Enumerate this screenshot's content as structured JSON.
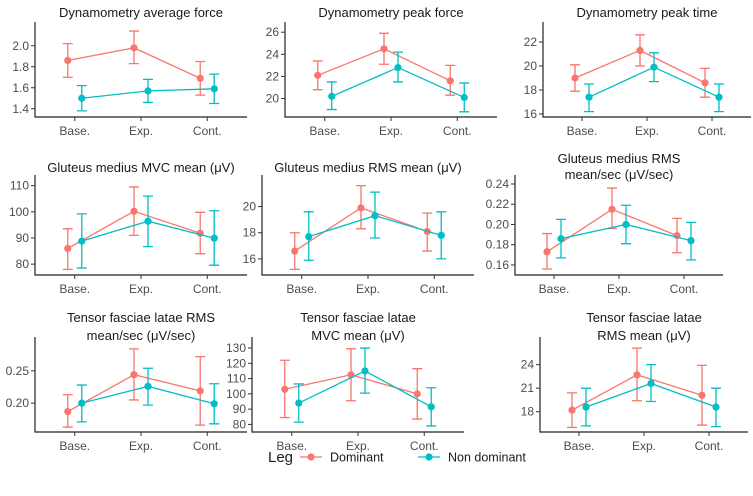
{
  "chart_data": [
    {
      "type": "line",
      "title": [
        "Dynamometry average force"
      ],
      "categories": [
        "Base.",
        "Exp.",
        "Cont."
      ],
      "yticks": [
        "1.4",
        "1.6",
        "1.8",
        "2.0"
      ],
      "ylim": [
        1.35,
        2.15
      ],
      "series": [
        {
          "name": "Dominant",
          "mean": [
            1.86,
            1.98,
            1.69
          ],
          "lower": [
            1.7,
            1.83,
            1.53
          ],
          "upper": [
            2.02,
            2.14,
            1.85
          ]
        },
        {
          "name": "Non dominant",
          "mean": [
            1.5,
            1.57,
            1.59
          ],
          "lower": [
            1.38,
            1.46,
            1.45
          ],
          "upper": [
            1.62,
            1.68,
            1.73
          ]
        }
      ]
    },
    {
      "type": "line",
      "title": [
        "Dynamometry peak force"
      ],
      "categories": [
        "Base.",
        "Exp.",
        "Cont."
      ],
      "yticks": [
        "20",
        "22",
        "24",
        "26"
      ],
      "ylim": [
        18.6,
        26.2
      ],
      "series": [
        {
          "name": "Dominant",
          "mean": [
            22.1,
            24.5,
            21.6
          ],
          "lower": [
            20.8,
            23.1,
            20.3
          ],
          "upper": [
            23.4,
            25.9,
            23.0
          ]
        },
        {
          "name": "Non dominant",
          "mean": [
            20.2,
            22.8,
            20.1
          ],
          "lower": [
            19.0,
            21.5,
            18.8
          ],
          "upper": [
            21.5,
            24.2,
            21.4
          ]
        }
      ]
    },
    {
      "type": "line",
      "title": [
        "Dynamometry peak time"
      ],
      "categories": [
        "Base.",
        "Exp.",
        "Cont."
      ],
      "yticks": [
        "16",
        "18",
        "20",
        "22"
      ],
      "ylim": [
        16,
        23
      ],
      "series": [
        {
          "name": "Dominant",
          "mean": [
            19.0,
            21.3,
            18.6
          ],
          "lower": [
            17.9,
            20.0,
            17.4
          ],
          "upper": [
            20.1,
            22.6,
            19.8
          ]
        },
        {
          "name": "Non dominant",
          "mean": [
            17.4,
            19.9,
            17.4
          ],
          "lower": [
            16.2,
            18.7,
            16.2
          ],
          "upper": [
            18.5,
            21.1,
            18.5
          ]
        }
      ]
    },
    {
      "type": "line",
      "title": [
        "Gluteus medius MVC mean (μV)"
      ],
      "categories": [
        "Base.",
        "Exp.",
        "Cont."
      ],
      "yticks": [
        "80",
        "90",
        "100",
        "110"
      ],
      "ylim": [
        77,
        111
      ],
      "series": [
        {
          "name": "Dominant",
          "mean": [
            86.0,
            100.2,
            91.8
          ],
          "lower": [
            78.0,
            91.0,
            84.0
          ],
          "upper": [
            93.5,
            109.5,
            99.8
          ]
        },
        {
          "name": "Non dominant",
          "mean": [
            88.8,
            96.4,
            89.9
          ],
          "lower": [
            78.5,
            86.7,
            79.6
          ],
          "upper": [
            99.2,
            106.0,
            100.4
          ]
        }
      ]
    },
    {
      "type": "line",
      "title": [
        "Gluteus medius RMS mean (μV)"
      ],
      "categories": [
        "Base.",
        "Exp.",
        "Cont."
      ],
      "yticks": [
        "16",
        "18",
        "20"
      ],
      "ylim": [
        15,
        21.8
      ],
      "series": [
        {
          "name": "Dominant",
          "mean": [
            16.6,
            19.9,
            18.1
          ],
          "lower": [
            15.2,
            18.3,
            16.6
          ],
          "upper": [
            18.0,
            21.6,
            19.5
          ]
        },
        {
          "name": "Non dominant",
          "mean": [
            17.7,
            19.3,
            17.8
          ],
          "lower": [
            15.9,
            17.6,
            16.0
          ],
          "upper": [
            19.6,
            21.1,
            19.6
          ]
        }
      ]
    },
    {
      "type": "line",
      "title": [
        "Gluteus medius RMS",
        "mean/sec (μV/sec)"
      ],
      "categories": [
        "Base.",
        "Exp.",
        "Cont."
      ],
      "yticks": [
        "0.16",
        "0.18",
        "0.20",
        "0.22",
        "0.24"
      ],
      "ylim": [
        0.153,
        0.241
      ],
      "series": [
        {
          "name": "Dominant",
          "mean": [
            0.173,
            0.215,
            0.189
          ],
          "lower": [
            0.156,
            0.196,
            0.172
          ],
          "upper": [
            0.191,
            0.236,
            0.206
          ]
        },
        {
          "name": "Non dominant",
          "mean": [
            0.186,
            0.2,
            0.184
          ],
          "lower": [
            0.167,
            0.181,
            0.165
          ],
          "upper": [
            0.205,
            0.219,
            0.202
          ]
        }
      ]
    },
    {
      "type": "line",
      "title": [
        "Tensor fasciae latae RMS",
        "mean/sec (μV/sec)"
      ],
      "categories": [
        "Base.",
        "Exp.",
        "Cont."
      ],
      "yticks": [
        "0.20",
        "0.25"
      ],
      "ylim": [
        0.16,
        0.29
      ],
      "series": [
        {
          "name": "Dominant",
          "mean": [
            0.187,
            0.244,
            0.219
          ],
          "lower": [
            0.163,
            0.205,
            0.166
          ],
          "upper": [
            0.213,
            0.284,
            0.272
          ]
        },
        {
          "name": "Non dominant",
          "mean": [
            0.2,
            0.226,
            0.199
          ],
          "lower": [
            0.171,
            0.197,
            0.168
          ],
          "upper": [
            0.228,
            0.254,
            0.23
          ]
        }
      ]
    },
    {
      "type": "line",
      "title": [
        "Tensor fasciae latae",
        "MVC mean (μV)"
      ],
      "categories": [
        "Base.",
        "Exp.",
        "Cont."
      ],
      "yticks": [
        "80",
        "90",
        "100",
        "110",
        "120",
        "130"
      ],
      "ylim": [
        77,
        132
      ],
      "series": [
        {
          "name": "Dominant",
          "mean": [
            103,
            112.5,
            100
          ],
          "lower": [
            84.5,
            95.5,
            83.5
          ],
          "upper": [
            122,
            129.5,
            116.5
          ]
        },
        {
          "name": "Non dominant",
          "mean": [
            94,
            115,
            91.5
          ],
          "lower": [
            81.5,
            100.5,
            79
          ],
          "upper": [
            106.5,
            130,
            104
          ]
        }
      ]
    },
    {
      "type": "line",
      "title": [
        "Tensor fasciae latae",
        "RMS mean (μV)"
      ],
      "categories": [
        "Base.",
        "Exp.",
        "Cont."
      ],
      "yticks": [
        "18",
        "21",
        "24"
      ],
      "ylim": [
        15.8,
        26.5
      ],
      "series": [
        {
          "name": "Dominant",
          "mean": [
            18.2,
            22.7,
            20.1
          ],
          "lower": [
            16.0,
            19.4,
            16.3
          ],
          "upper": [
            20.4,
            26.1,
            23.9
          ]
        },
        {
          "name": "Non dominant",
          "mean": [
            18.6,
            21.6,
            18.6
          ],
          "lower": [
            16.2,
            19.3,
            16.1
          ],
          "upper": [
            21.0,
            24.0,
            21.0
          ]
        }
      ]
    }
  ],
  "legend": {
    "title": "Leg",
    "items": [
      {
        "label": "Dominant",
        "color": "#F8766D"
      },
      {
        "label": "Non dominant",
        "color": "#00BFC4"
      }
    ]
  }
}
